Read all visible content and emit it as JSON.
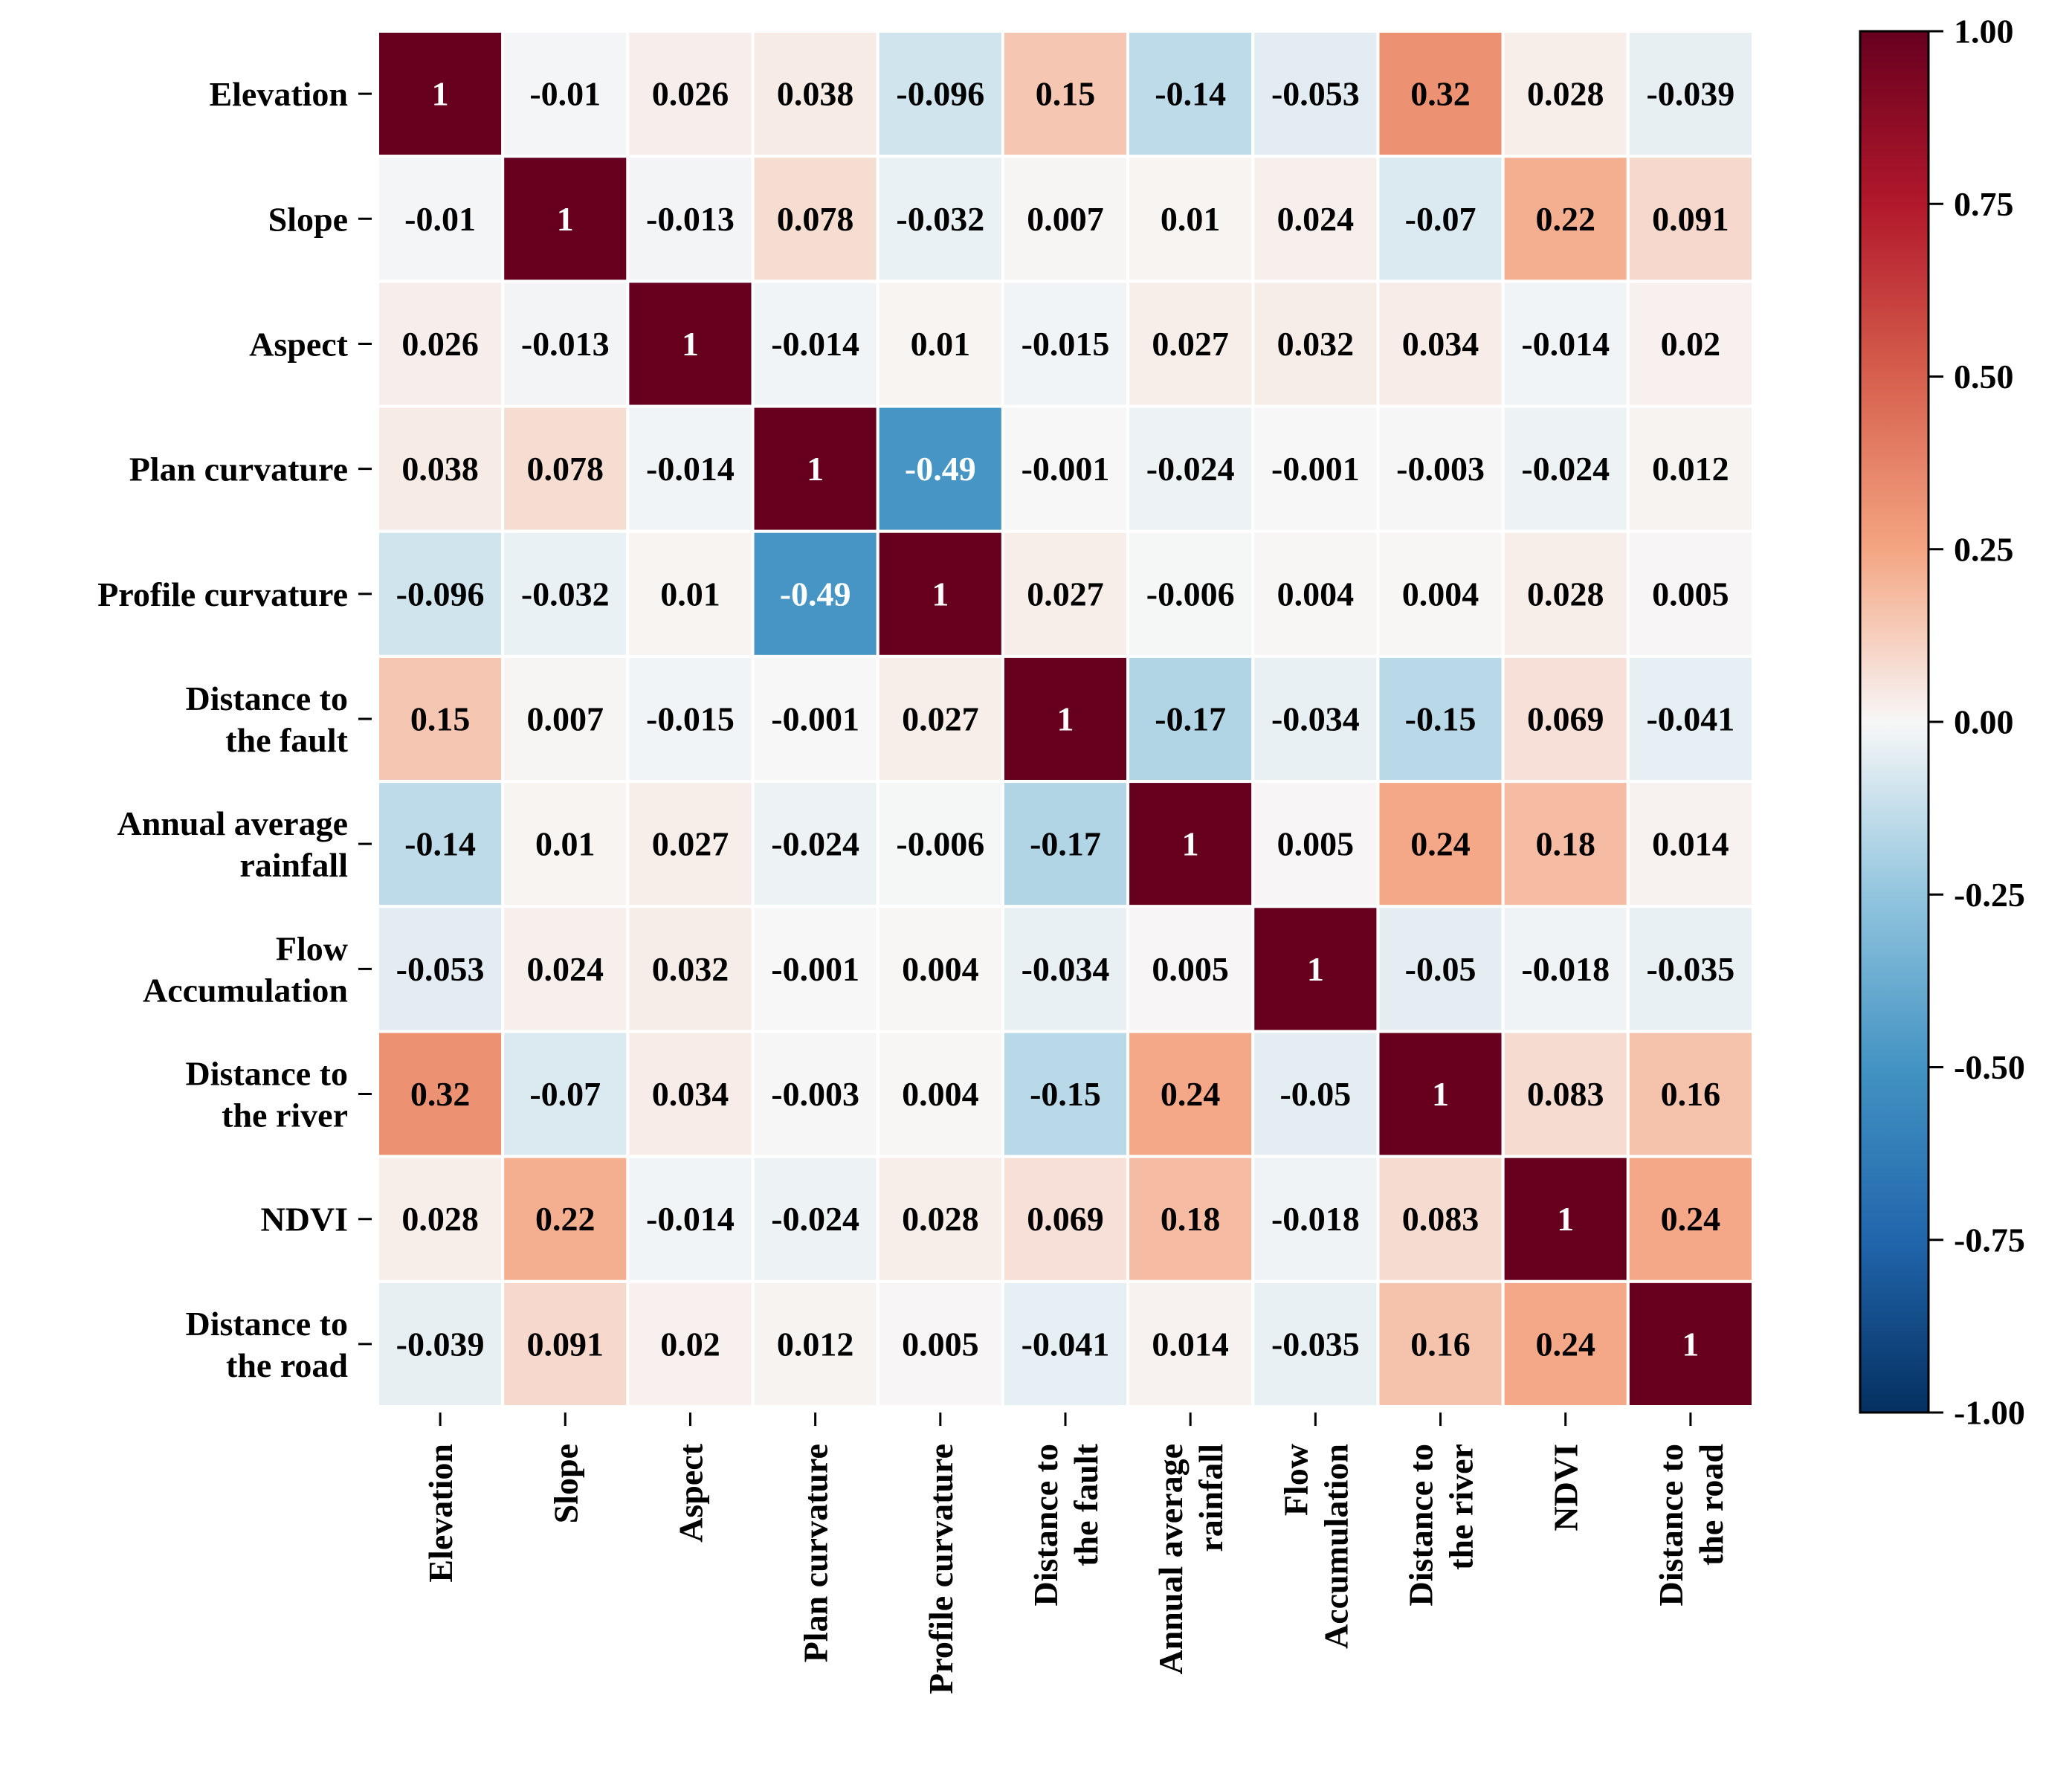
{
  "chart_data": {
    "type": "heatmap",
    "title": "",
    "xlabel": "",
    "ylabel": "",
    "labels": [
      [
        "Elevation"
      ],
      [
        "Slope"
      ],
      [
        "Aspect"
      ],
      [
        "Plan curvature"
      ],
      [
        "Profile curvature"
      ],
      [
        "Distance to",
        "the fault"
      ],
      [
        "Annual average",
        "rainfall"
      ],
      [
        "Flow",
        "Accumulation"
      ],
      [
        "Distance to",
        "the river"
      ],
      [
        "NDVI"
      ],
      [
        "Distance to",
        "the road"
      ]
    ],
    "matrix": [
      [
        "1",
        "-0.01",
        "0.026",
        "0.038",
        "-0.096",
        "0.15",
        "-0.14",
        "-0.053",
        "0.32",
        "0.028",
        "-0.039"
      ],
      [
        "-0.01",
        "1",
        "-0.013",
        "0.078",
        "-0.032",
        "0.007",
        "0.01",
        "0.024",
        "-0.07",
        "0.22",
        "0.091"
      ],
      [
        "0.026",
        "-0.013",
        "1",
        "-0.014",
        "0.01",
        "-0.015",
        "0.027",
        "0.032",
        "0.034",
        "-0.014",
        "0.02"
      ],
      [
        "0.038",
        "0.078",
        "-0.014",
        "1",
        "-0.49",
        "-0.001",
        "-0.024",
        "-0.001",
        "-0.003",
        "-0.024",
        "0.012"
      ],
      [
        "-0.096",
        "-0.032",
        "0.01",
        "-0.49",
        "1",
        "0.027",
        "-0.006",
        "0.004",
        "0.004",
        "0.028",
        "0.005"
      ],
      [
        "0.15",
        "0.007",
        "-0.015",
        "-0.001",
        "0.027",
        "1",
        "-0.17",
        "-0.034",
        "-0.15",
        "0.069",
        "-0.041"
      ],
      [
        "-0.14",
        "0.01",
        "0.027",
        "-0.024",
        "-0.006",
        "-0.17",
        "1",
        "0.005",
        "0.24",
        "0.18",
        "0.014"
      ],
      [
        "-0.053",
        "0.024",
        "0.032",
        "-0.001",
        "0.004",
        "-0.034",
        "0.005",
        "1",
        "-0.05",
        "-0.018",
        "-0.035"
      ],
      [
        "0.32",
        "-0.07",
        "0.034",
        "-0.003",
        "0.004",
        "-0.15",
        "0.24",
        "-0.05",
        "1",
        "0.083",
        "0.16"
      ],
      [
        "0.028",
        "0.22",
        "-0.014",
        "-0.024",
        "0.028",
        "0.069",
        "0.18",
        "-0.018",
        "0.083",
        "1",
        "0.24"
      ],
      [
        "-0.039",
        "0.091",
        "0.02",
        "0.012",
        "0.005",
        "-0.041",
        "0.014",
        "-0.035",
        "0.16",
        "0.24",
        "1"
      ]
    ],
    "colorbar": {
      "range": [
        -1,
        1
      ],
      "ticks": [
        "1.00",
        "0.75",
        "0.50",
        "0.25",
        "0.00",
        "-0.25",
        "-0.50",
        "-0.75",
        "-1.00"
      ],
      "colormap": "RdBu_r",
      "stops": [
        [
          -1.0,
          "#053061"
        ],
        [
          -0.75,
          "#2166ac"
        ],
        [
          -0.5,
          "#4393c3"
        ],
        [
          -0.25,
          "#92c5de"
        ],
        [
          0.0,
          "#f7f7f7"
        ],
        [
          0.25,
          "#f4a582"
        ],
        [
          0.5,
          "#d6604d"
        ],
        [
          0.75,
          "#b2182b"
        ],
        [
          1.0,
          "#67001f"
        ]
      ]
    },
    "cell_border_color": "#ffffff"
  }
}
